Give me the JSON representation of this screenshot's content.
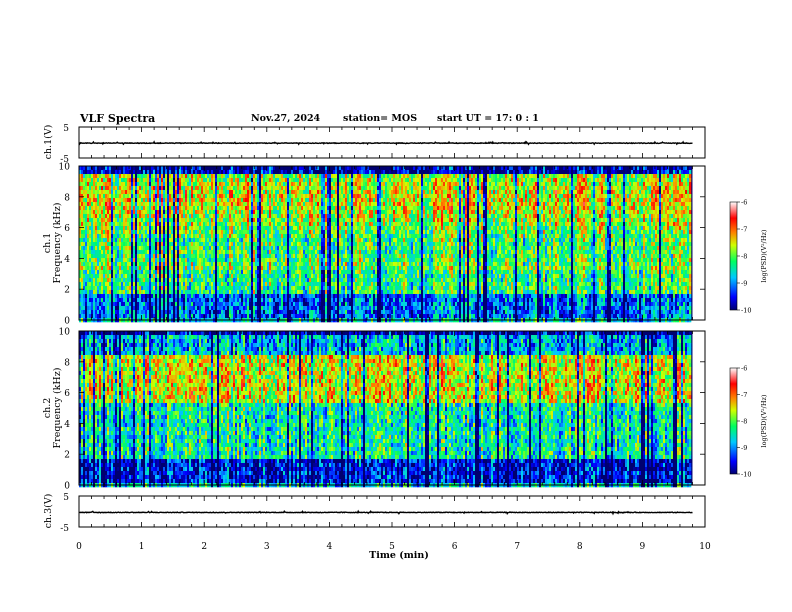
{
  "header": {
    "title": "VLF Spectra",
    "date": "Nov.27, 2024",
    "station": "station= MOS",
    "start": "start UT =  17: 0  : 1"
  },
  "chart_data": [
    {
      "type": "line",
      "panel": "ch1-waveform",
      "ylabel": "ch.1(V)",
      "ylim": [
        -5,
        5
      ],
      "yticks": [
        5,
        -5
      ],
      "xlim": [
        0,
        10
      ],
      "series": [
        {
          "values_description_level": -0.2
        }
      ]
    },
    {
      "type": "heatmap",
      "panel": "ch1-spectrogram",
      "ylabel": "ch.1 Frequency (kHz)",
      "ylim": [
        0,
        10
      ],
      "yticks": [
        0,
        2,
        4,
        6,
        8,
        10
      ],
      "xlim": [
        0,
        10
      ],
      "data_end_min": 9.8,
      "colorbar": {
        "label": "log(PSD)(V²/Hz)",
        "range": [
          -10,
          -6
        ],
        "ticks": [
          -6,
          -7,
          -8,
          -9,
          -10
        ]
      }
    },
    {
      "type": "heatmap",
      "panel": "ch2-spectrogram",
      "ylabel": "ch.2 Frequency (kHz)",
      "ylim": [
        0,
        10
      ],
      "yticks": [
        0,
        2,
        4,
        6,
        8,
        10
      ],
      "xlim": [
        0,
        10
      ],
      "data_end_min": 9.8,
      "colorbar": {
        "label": "log(PSD)(V²/Hz)",
        "range": [
          -10,
          -6
        ],
        "ticks": [
          -6,
          -7,
          -8,
          -9,
          -10
        ]
      }
    },
    {
      "type": "line",
      "panel": "ch3-waveform",
      "ylabel": "ch.3(V)",
      "ylim": [
        -5,
        5
      ],
      "yticks": [
        5,
        -5
      ],
      "xlim": [
        0,
        10
      ],
      "series": [
        {
          "values_description_level": -0.3
        }
      ]
    }
  ],
  "xaxis": {
    "label": "Time (min)",
    "ticks": [
      "0",
      "1",
      "2",
      "3",
      "4",
      "5",
      "6",
      "7",
      "8",
      "9",
      "10"
    ]
  },
  "colorbar_labels": {
    "ch1": [
      "-6",
      "-7",
      "-8",
      "-9",
      "-10"
    ],
    "ch2": [
      "-6",
      "-7",
      "-8",
      "-9",
      "-10"
    ],
    "unit": "log(PSD)(V²/Hz)"
  },
  "ylabels": {
    "ch1_wave": "ch.1(V)",
    "ch1_spec_a": "ch.1",
    "ch1_spec_b": "Frequency (kHz)",
    "ch2_spec_a": "ch.2",
    "ch2_spec_b": "Frequency (kHz)",
    "ch3_wave": "ch.3(V)",
    "wave_ticks": [
      "5",
      "-5"
    ],
    "freq_ticks": [
      "0",
      "2",
      "4",
      "6",
      "8",
      "10"
    ]
  }
}
